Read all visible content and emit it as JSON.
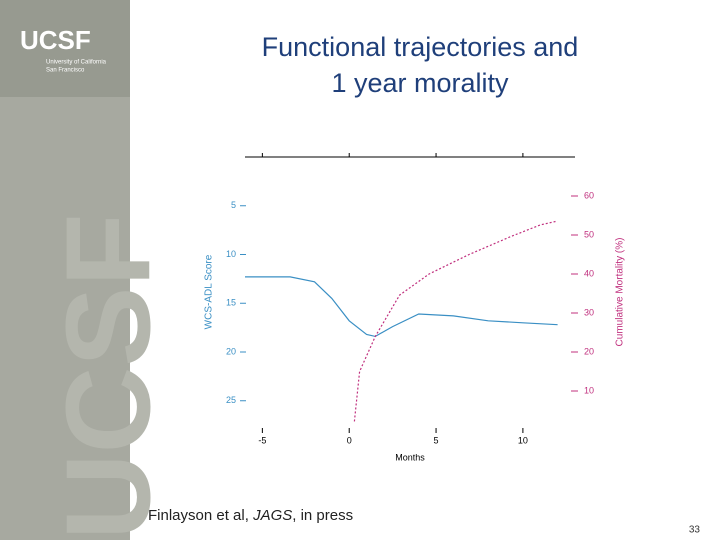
{
  "logo": {
    "mark": "UCSF",
    "line1": "University of California",
    "line2": "San Francisco",
    "watermark": "UCSF"
  },
  "chart_data": {
    "type": "line",
    "title": "Functional trajectories and 1 year morality",
    "x_label": "Months",
    "y_label": "WCS-ADL Score",
    "y2_label": "Cumulative Mortality (%)",
    "xlim": [
      -6,
      13
    ],
    "xticks": [
      -5,
      0,
      5,
      10
    ],
    "ylim": [
      0,
      28
    ],
    "yticks": [
      5,
      10,
      15,
      20,
      25
    ],
    "y_reversed": true,
    "y2lim": [
      0,
      70
    ],
    "y2ticks": [
      10,
      20,
      30,
      40,
      50,
      60
    ],
    "series": [
      {
        "name": "WCS-ADL Score",
        "color": "#3a8fc4",
        "dash": "none",
        "x": [
          -6,
          -3.4,
          -2,
          -1,
          0,
          1,
          1.5,
          2.5,
          4,
          6,
          8,
          10,
          12
        ],
        "values": [
          12.3,
          12.3,
          12.8,
          14.5,
          16.8,
          18.2,
          18.4,
          17.4,
          16.1,
          16.3,
          16.8,
          17.0,
          17.2
        ]
      },
      {
        "name": "Cumulative Mortality (%)",
        "color": "#c0307e",
        "axis": "y2",
        "dash": "2 2",
        "x": [
          0.3,
          0.6,
          1.5,
          2.9,
          4.6,
          6.9,
          9.3,
          11,
          11.9
        ],
        "values": [
          2.2,
          15,
          24,
          34.6,
          40,
          45,
          49.6,
          52.6,
          53.5
        ]
      }
    ]
  },
  "citation": {
    "authors": "Finlayson et al, ",
    "journal": "JAGS",
    "status": ", in press"
  },
  "page_number": "33"
}
